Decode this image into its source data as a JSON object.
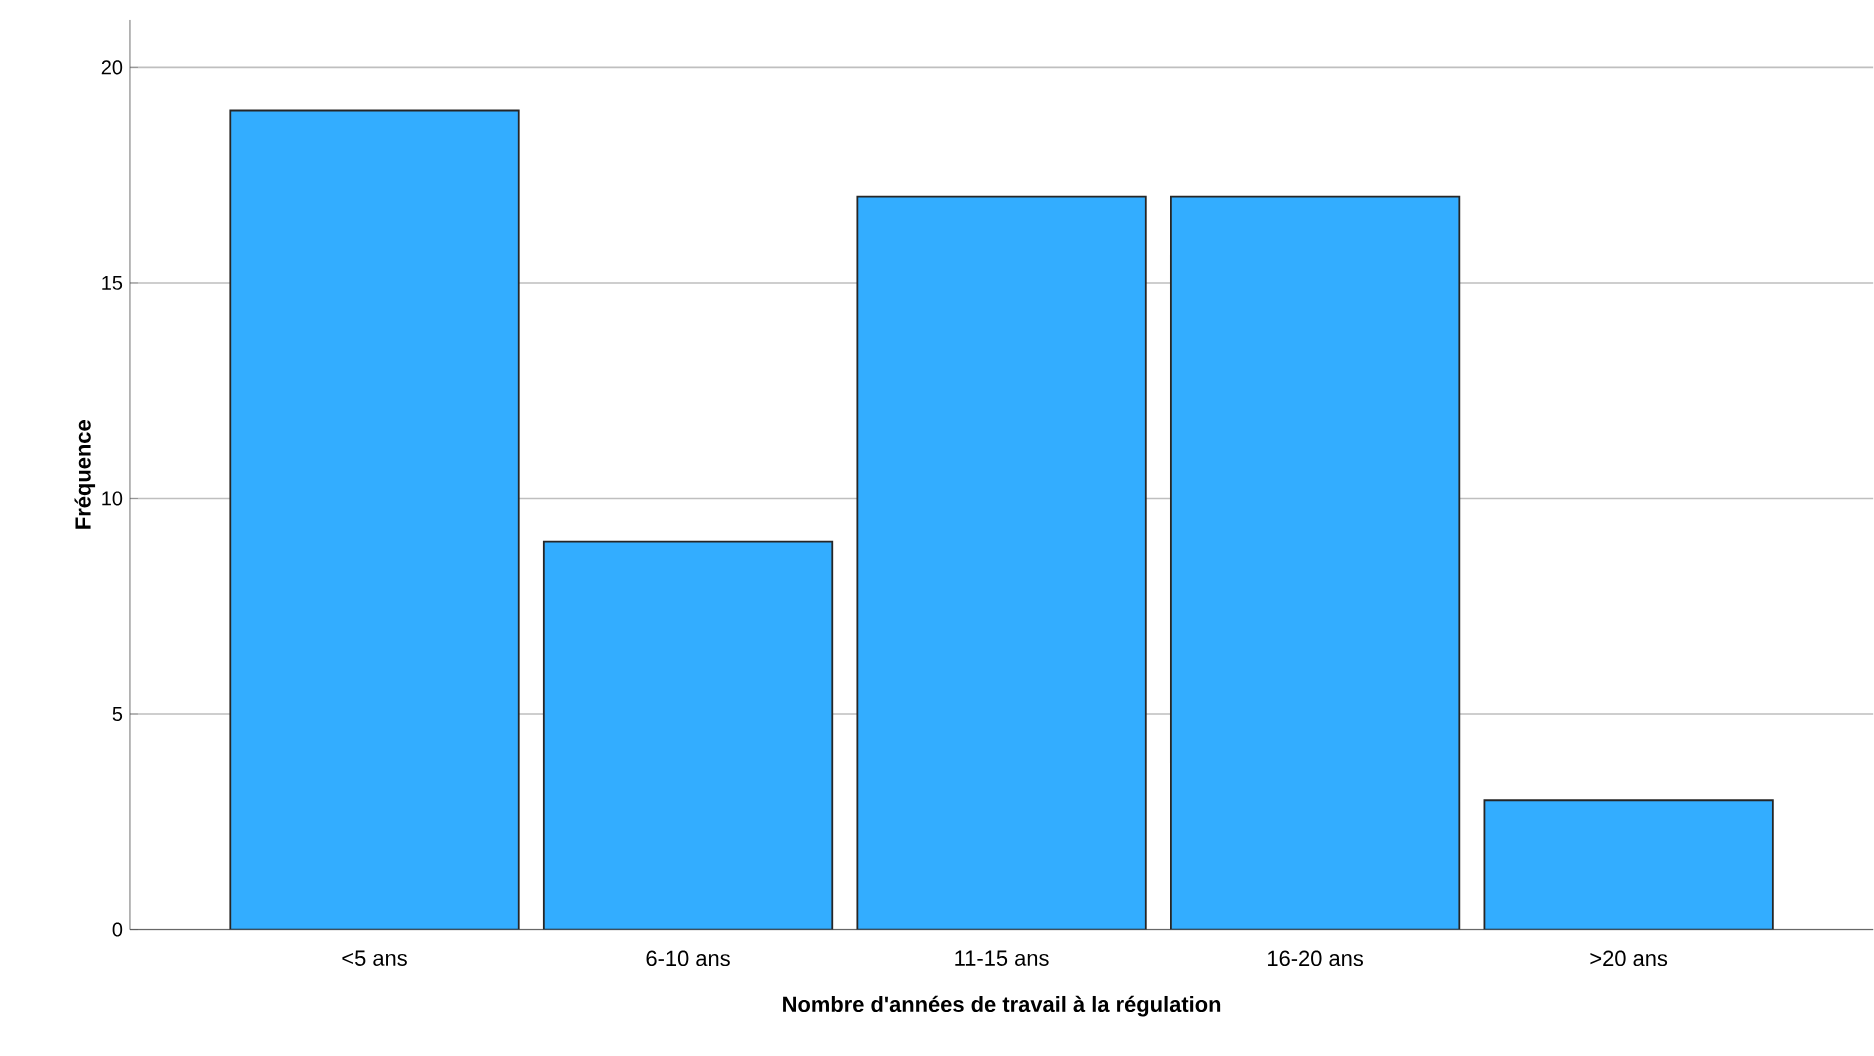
{
  "chart_data": {
    "type": "bar",
    "xlabel": "Nombre d'années de travail à la régulation",
    "ylabel": "Fréquence",
    "categories": [
      "<5 ans",
      "6-10 ans",
      "11-15 ans",
      "16-20 ans",
      ">20 ans"
    ],
    "values": [
      19,
      9,
      17,
      17,
      3
    ],
    "color": "#33adff",
    "ylim": [
      0,
      21.1
    ],
    "yticks": [
      0,
      5,
      10,
      15,
      20
    ],
    "grid": "y"
  }
}
